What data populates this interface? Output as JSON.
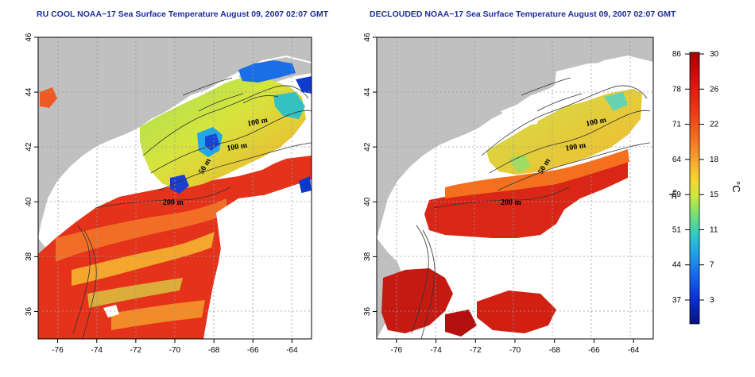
{
  "titles": {
    "left": "RU COOL NOAA−17 Sea Surface Temperature August 09, 2007 02:07 GMT",
    "right": "DECLOUDED NOAA−17 Sea Surface Temperature August 09, 2007 02:07 GMT"
  },
  "map": {
    "lon_range": [
      -77,
      -63
    ],
    "lat_range": [
      35,
      46
    ],
    "x_ticks": [
      "-76",
      "-74",
      "-72",
      "-70",
      "-68",
      "-66",
      "-64"
    ],
    "y_ticks": [
      "36",
      "38",
      "40",
      "42",
      "44",
      "46"
    ],
    "grid_lon": [
      -76,
      -74,
      -72,
      -70,
      -68,
      -66,
      -64
    ],
    "grid_lat": [
      36,
      38,
      40,
      42,
      44
    ],
    "land_color": "#c0c0c0",
    "cloud_color": "#ffffff"
  },
  "contour_labels": [
    "100 m",
    "100 m",
    "50 m",
    "200 m"
  ],
  "colorbar": {
    "fahrenheit_ticks": [
      "86",
      "78",
      "71",
      "64",
      "59",
      "51",
      "44",
      "37"
    ],
    "celsius_ticks": [
      "30",
      "26",
      "22",
      "18",
      "15",
      "11",
      "7",
      "3"
    ],
    "f_unit": "°F",
    "c_unit": "°C",
    "colors": [
      "#a50000",
      "#d51010",
      "#ee3a14",
      "#f5701e",
      "#f9a72a",
      "#f6d532",
      "#cde83c",
      "#7fe16b",
      "#35d0b8",
      "#20a8e8",
      "#1668f0",
      "#0a2fd4",
      "#06127f"
    ]
  }
}
